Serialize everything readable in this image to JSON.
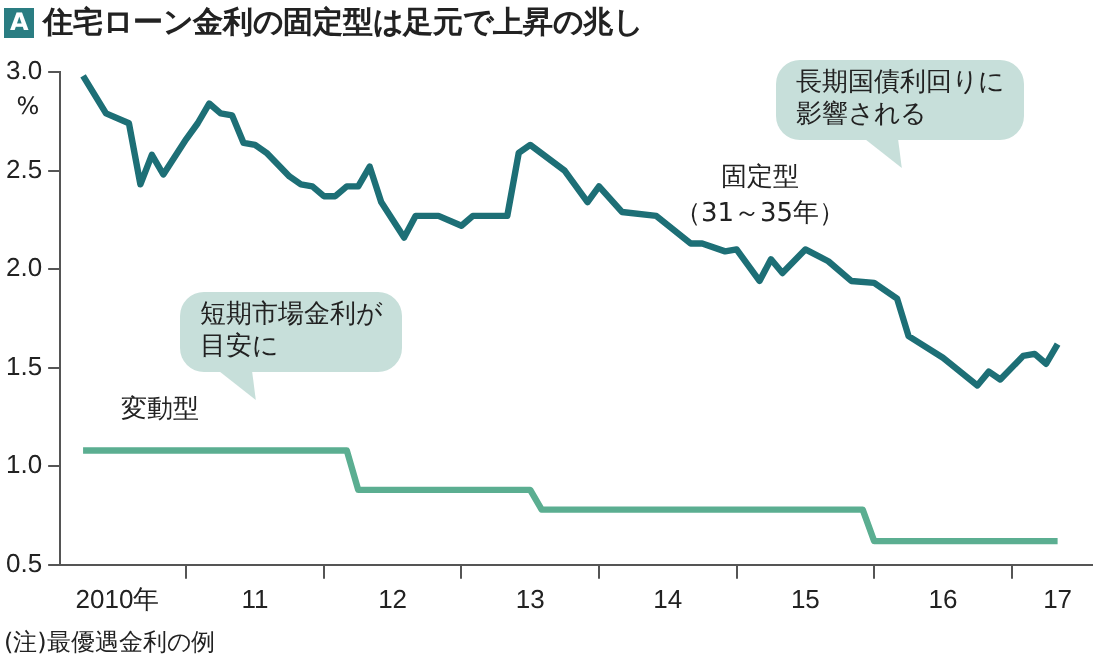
{
  "chart_data": {
    "type": "line",
    "title": "住宅ローン金利の固定型は足元で上昇の兆し",
    "ylabel": "%",
    "annotations": [
      "A",
      "長期国債利回りに影響される",
      "短期市場金利が目安に",
      "(注)最優遇金利の例"
    ],
    "series": [
      {
        "name": "固定型（31～35年）",
        "color": "#1d6f76",
        "x": [
          "2010-04",
          "2010-06",
          "2010-08",
          "2010-09",
          "2010-10",
          "2010-11",
          "2011-01",
          "2011-02",
          "2011-03",
          "2011-04",
          "2011-05",
          "2011-06",
          "2011-07",
          "2011-08",
          "2011-10",
          "2011-11",
          "2011-12",
          "2012-01",
          "2012-02",
          "2012-03",
          "2012-04",
          "2012-05",
          "2012-06",
          "2012-07",
          "2012-08",
          "2012-09",
          "2012-11",
          "2013-01",
          "2013-02",
          "2013-05",
          "2013-06",
          "2013-07",
          "2013-10",
          "2013-12",
          "2014-01",
          "2014-03",
          "2014-06",
          "2014-09",
          "2014-10",
          "2014-12",
          "2015-01",
          "2015-03",
          "2015-04",
          "2015-05",
          "2015-07",
          "2015-09",
          "2015-11",
          "2016-01",
          "2016-03",
          "2016-04",
          "2016-07",
          "2016-10",
          "2016-11",
          "2016-12",
          "2017-02",
          "2017-03",
          "2017-04",
          "2017-05"
        ],
        "values": [
          2.98,
          2.79,
          2.74,
          2.43,
          2.58,
          2.48,
          2.66,
          2.74,
          2.84,
          2.79,
          2.78,
          2.64,
          2.63,
          2.59,
          2.47,
          2.43,
          2.42,
          2.37,
          2.37,
          2.42,
          2.42,
          2.52,
          2.34,
          2.25,
          2.16,
          2.27,
          2.27,
          2.22,
          2.27,
          2.27,
          2.59,
          2.63,
          2.5,
          2.34,
          2.42,
          2.29,
          2.27,
          2.13,
          2.13,
          2.09,
          2.1,
          1.94,
          2.05,
          1.98,
          2.1,
          2.04,
          1.94,
          1.93,
          1.85,
          1.66,
          1.55,
          1.41,
          1.48,
          1.44,
          1.56,
          1.57,
          1.52,
          1.62
        ]
      },
      {
        "name": "変動型",
        "color": "#5bae91",
        "x": [
          "2010-04",
          "2012-03",
          "2012-04",
          "2013-07",
          "2013-08",
          "2015-12",
          "2016-01",
          "2017-05"
        ],
        "values": [
          1.08,
          1.08,
          0.88,
          0.88,
          0.78,
          0.78,
          0.62,
          0.62
        ]
      }
    ],
    "xlim": [
      "2010-02",
      "2017-08"
    ],
    "xticks": [
      {
        "value": "2010-07",
        "label": "2010年"
      },
      {
        "value": "2011-01",
        "label": null
      },
      {
        "value": "2011-07",
        "label": "11"
      },
      {
        "value": "2012-01",
        "label": null
      },
      {
        "value": "2012-07",
        "label": "12"
      },
      {
        "value": "2013-01",
        "label": null
      },
      {
        "value": "2013-07",
        "label": "13"
      },
      {
        "value": "2014-01",
        "label": null
      },
      {
        "value": "2014-07",
        "label": "14"
      },
      {
        "value": "2015-01",
        "label": null
      },
      {
        "value": "2015-07",
        "label": "15"
      },
      {
        "value": "2016-01",
        "label": null
      },
      {
        "value": "2016-07",
        "label": "16"
      },
      {
        "value": "2017-01",
        "label": null
      },
      {
        "value": "2017-05",
        "label": "17"
      }
    ],
    "ylim": [
      0.5,
      3.0
    ],
    "yticks": [
      {
        "value": 0.5,
        "label": "0.5"
      },
      {
        "value": 1,
        "label": "1.0"
      },
      {
        "value": 1.5,
        "label": "1.5"
      },
      {
        "value": 2,
        "label": "2.0"
      },
      {
        "value": 2.5,
        "label": "2.5"
      },
      {
        "value": 3,
        "label": "3.0"
      }
    ],
    "grid": false,
    "legend": false,
    "marker": "none",
    "line_style": "solid"
  }
}
